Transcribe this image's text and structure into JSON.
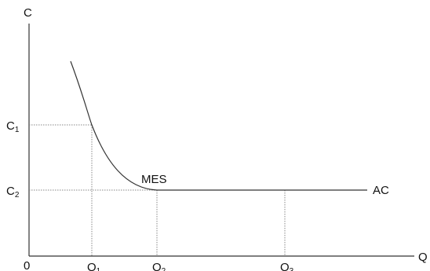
{
  "chart_data": {
    "type": "line",
    "title": "",
    "xlabel": "Q",
    "ylabel": "C",
    "origin_label": "0",
    "curve_label": "AC",
    "annotation": "MES",
    "x_markers": [
      {
        "base": "Q",
        "sub": "1"
      },
      {
        "base": "Q",
        "sub": "2"
      },
      {
        "base": "Q",
        "sub": "3"
      }
    ],
    "y_markers": [
      {
        "base": "C",
        "sub": "1"
      },
      {
        "base": "C",
        "sub": "2"
      }
    ],
    "grid": false,
    "colors": {
      "axis": "#333333",
      "curve": "#333333",
      "guide": "#888888",
      "text": "#111111"
    }
  }
}
